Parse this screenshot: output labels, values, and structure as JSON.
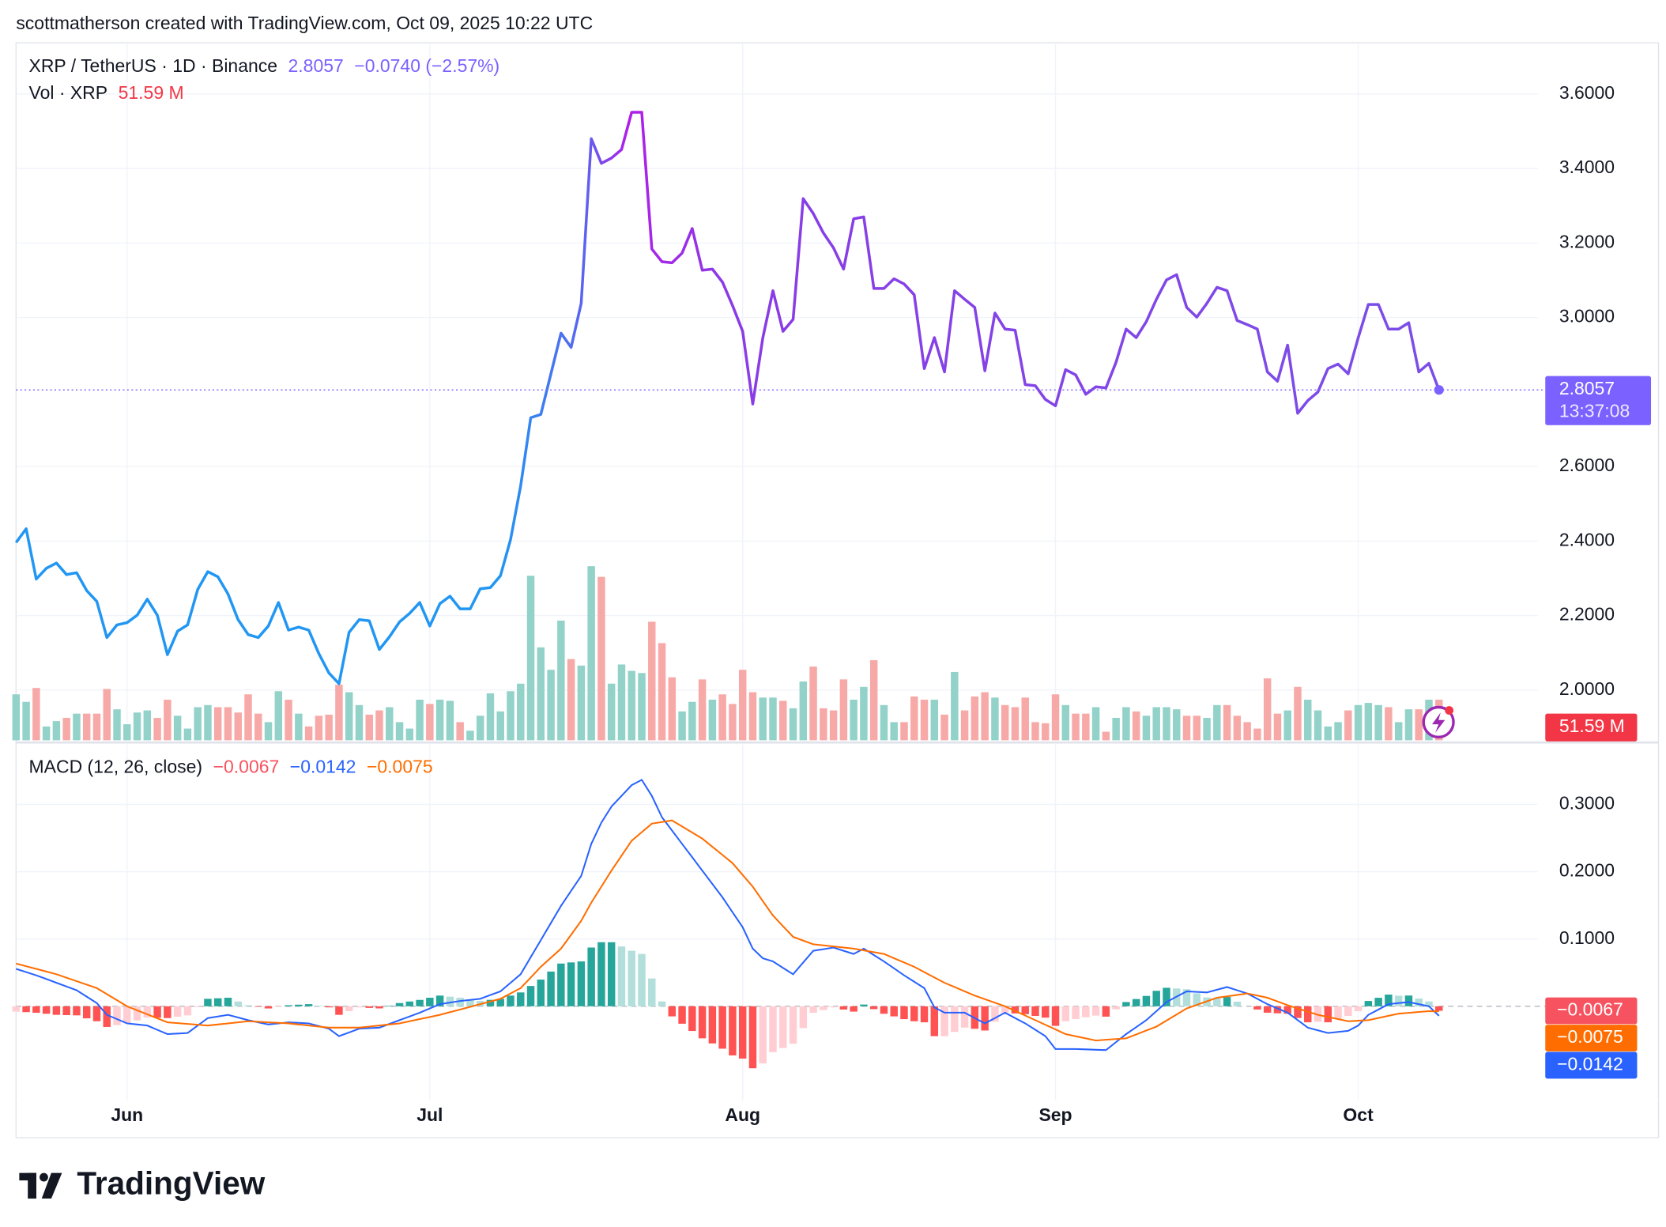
{
  "header": {
    "credit": "scottmatherson created with TradingView.com, Oct 09, 2025 10:22 UTC"
  },
  "footer": {
    "logo": "TradingView"
  },
  "chart_data": [
    {
      "type": "line",
      "categories": [
        null,
        null,
        null,
        null,
        null,
        null,
        null,
        null,
        null,
        null,
        null,
        "Jun",
        null,
        null,
        null,
        null,
        null,
        null,
        null,
        null,
        null,
        null,
        null,
        null,
        null,
        null,
        null,
        null,
        null,
        null,
        null,
        null,
        null,
        null,
        null,
        null,
        null,
        null,
        null,
        null,
        null,
        "Jul",
        null,
        null,
        null,
        null,
        null,
        null,
        null,
        null,
        null,
        null,
        null,
        null,
        null,
        null,
        null,
        null,
        null,
        null,
        null,
        null,
        null,
        null,
        null,
        null,
        null,
        null,
        null,
        null,
        null,
        null,
        "Aug",
        null,
        null,
        null,
        null,
        null,
        null,
        null,
        null,
        null,
        null,
        null,
        null,
        null,
        null,
        null,
        null,
        null,
        null,
        null,
        null,
        null,
        null,
        null,
        null,
        null,
        null,
        null,
        null,
        null,
        null,
        "Sep",
        null,
        null,
        null,
        null,
        null,
        null,
        null,
        null,
        null,
        null,
        null,
        null,
        null,
        null,
        null,
        null,
        null,
        null,
        null,
        null,
        null,
        null,
        null,
        null,
        null,
        null,
        null,
        null,
        null,
        "Oct",
        null,
        null,
        null,
        null,
        null,
        null,
        null,
        null
      ],
      "ylim": [
        1.8652,
        3.7376
      ],
      "yticks": [
        {
          "value": 2.0,
          "label": "2.0000"
        },
        {
          "value": 2.2,
          "label": "2.2000"
        },
        {
          "value": 2.4,
          "label": "2.4000"
        },
        {
          "value": 2.6,
          "label": "2.6000"
        },
        {
          "value": 3.0,
          "label": "3.0000"
        },
        {
          "value": 3.2,
          "label": "3.2000"
        },
        {
          "value": 3.4,
          "label": "3.4000"
        },
        {
          "value": 3.6,
          "label": "3.6000"
        }
      ],
      "grid": true,
      "series": [
        {
          "name": "XRP / TetherUS · 1D · Binance",
          "color": "#7b61ff",
          "change_label": "−0.0740 (−2.57%)",
          "countdown": "13:37:08",
          "values": [
            2.396,
            2.433,
            2.298,
            2.327,
            2.341,
            2.31,
            2.315,
            2.267,
            2.238,
            2.141,
            2.175,
            2.181,
            2.201,
            2.244,
            2.201,
            2.095,
            2.158,
            2.175,
            2.27,
            2.318,
            2.304,
            2.258,
            2.189,
            2.149,
            2.141,
            2.172,
            2.235,
            2.161,
            2.169,
            2.161,
            2.098,
            2.046,
            2.017,
            2.155,
            2.189,
            2.186,
            2.109,
            2.143,
            2.183,
            2.206,
            2.235,
            2.172,
            2.232,
            2.252,
            2.218,
            2.218,
            2.272,
            2.275,
            2.307,
            2.404,
            2.548,
            2.731,
            2.74,
            2.849,
            2.958,
            2.92,
            3.038,
            3.48,
            3.414,
            3.428,
            3.451,
            3.551,
            3.551,
            3.184,
            3.15,
            3.147,
            3.173,
            3.239,
            3.127,
            3.13,
            3.095,
            3.032,
            2.963,
            2.768,
            2.946,
            3.072,
            2.963,
            2.995,
            3.319,
            3.279,
            3.227,
            3.187,
            3.13,
            3.265,
            3.27,
            3.078,
            3.078,
            3.104,
            3.09,
            3.061,
            2.863,
            2.946,
            2.854,
            3.072,
            3.049,
            3.027,
            2.857,
            3.012,
            2.969,
            2.966,
            2.82,
            2.817,
            2.78,
            2.763,
            2.86,
            2.846,
            2.794,
            2.814,
            2.811,
            2.88,
            2.969,
            2.946,
            2.989,
            3.049,
            3.101,
            3.115,
            3.027,
            3.001,
            3.038,
            3.081,
            3.072,
            2.992,
            2.981,
            2.969,
            2.854,
            2.829,
            2.926,
            2.743,
            2.777,
            2.8,
            2.863,
            2.875,
            2.849,
            2.946,
            3.035,
            3.035,
            2.969,
            2.969,
            2.986,
            2.854,
            2.877,
            2.8057
          ]
        },
        {
          "name": "Vol · XRP",
          "type": "bar",
          "up_color": "#92d2c9",
          "down_color": "#f7a9a7",
          "label_color": "#f23645",
          "last_label": "51.59 M",
          "values": [
            58.4,
            48.9,
            66.5,
            17.6,
            24.4,
            28.5,
            33.9,
            33.9,
            33.9,
            65.2,
            39.4,
            20.4,
            35.3,
            38.0,
            28.5,
            51.6,
            31.2,
            14.9,
            42.1,
            44.8,
            42.1,
            42.1,
            35.3,
            58.4,
            33.9,
            23.1,
            62.4,
            51.6,
            33.9,
            17.6,
            31.2,
            32.6,
            70.6,
            61.1,
            44.8,
            32.6,
            38.0,
            42.1,
            23.1,
            14.9,
            51.6,
            46.2,
            51.6,
            50.2,
            23.1,
            12.2,
            31.2,
            59.7,
            36.7,
            62.4,
            72.0,
            209.1,
            118.1,
            89.6,
            152.1,
            103.2,
            95.0,
            221.3,
            207.7,
            72.0,
            96.4,
            88.2,
            85.5,
            150.7,
            123.5,
            80.1,
            36.7,
            48.9,
            77.4,
            51.6,
            58.4,
            46.2,
            89.6,
            61.1,
            54.3,
            54.3,
            50.2,
            40.7,
            74.7,
            93.7,
            40.7,
            38.0,
            77.4,
            51.6,
            67.9,
            101.8,
            44.8,
            23.1,
            23.1,
            55.7,
            51.6,
            51.6,
            32.6,
            86.9,
            38.0,
            55.7,
            61.1,
            54.3,
            44.8,
            42.1,
            54.3,
            23.1,
            21.7,
            58.4,
            44.8,
            33.9,
            33.9,
            42.1,
            10.9,
            28.5,
            42.1,
            36.7,
            31.2,
            42.1,
            42.1,
            39.4,
            31.2,
            31.2,
            28.5,
            44.8,
            44.8,
            31.2,
            23.1,
            14.9,
            78.7,
            33.9,
            38.0,
            67.9,
            51.6,
            38.0,
            17.6,
            23.1,
            38.0,
            44.8,
            47.5,
            44.8,
            42.1,
            23.1,
            39.4,
            39.4,
            51.6,
            51.59
          ]
        }
      ]
    },
    {
      "type": "macd",
      "title": "MACD (12, 26, close)",
      "ylim": [
        -0.1397,
        0.3889
      ],
      "yticks": [
        {
          "value": 0.1,
          "label": "0.1000"
        },
        {
          "value": 0.2,
          "label": "0.2000"
        },
        {
          "value": 0.3,
          "label": "0.3000"
        }
      ],
      "series": [
        {
          "type": "histogram",
          "color": "#f7525f",
          "up_rising": "#26a69a",
          "up_falling": "#b2dfdb",
          "down_falling": "#ff5252",
          "down_rising": "#ffcdd2",
          "last_label": "−0.0067",
          "values": [
            -0.0079,
            -0.0087,
            -0.0096,
            -0.0111,
            -0.0127,
            -0.0131,
            -0.0135,
            -0.0179,
            -0.0222,
            -0.0307,
            -0.028,
            -0.0254,
            -0.021,
            -0.0167,
            -0.0171,
            -0.0175,
            -0.0155,
            -0.0135,
            -0.0012,
            0.0111,
            0.0119,
            0.0127,
            0.0071,
            0.0016,
            -0.0008,
            -0.0032,
            -0.0008,
            0.0016,
            0.0024,
            0.0032,
            0.0008,
            -0.0016,
            -0.0127,
            -0.0072,
            -0.0016,
            -0.0024,
            -0.0031,
            0.0008,
            0.0048,
            0.0071,
            0.0095,
            0.0127,
            0.0159,
            0.0143,
            0.0127,
            0.0103,
            0.0079,
            0.0096,
            0.0111,
            0.0159,
            0.0206,
            0.0302,
            0.0397,
            0.0516,
            0.0635,
            0.0652,
            0.0667,
            0.0873,
            0.0952,
            0.0952,
            0.0889,
            0.0826,
            0.0778,
            0.0413,
            0.0072,
            -0.015,
            -0.0259,
            -0.0367,
            -0.0476,
            -0.0552,
            -0.063,
            -0.073,
            -0.0777,
            -0.0921,
            -0.0849,
            -0.0682,
            -0.0619,
            -0.0556,
            -0.0325,
            -0.0096,
            -0.0056,
            -0.0016,
            -0.0048,
            -0.0079,
            0.0026,
            -0.0042,
            -0.0111,
            -0.015,
            -0.0191,
            -0.0222,
            -0.0238,
            -0.0444,
            -0.0444,
            -0.0381,
            -0.0317,
            -0.0334,
            -0.036,
            -0.0228,
            -0.0095,
            -0.0106,
            -0.0117,
            -0.0143,
            -0.0169,
            -0.0291,
            -0.0222,
            -0.019,
            -0.0164,
            -0.0138,
            -0.0154,
            -0.0045,
            0.0063,
            0.0108,
            0.0154,
            0.023,
            0.0275,
            0.0265,
            0.0254,
            0.0193,
            0.0132,
            0.0119,
            0.0138,
            0.0069,
            0.0,
            -0.0048,
            -0.0095,
            -0.0104,
            -0.0111,
            -0.0174,
            -0.0238,
            -0.023,
            -0.0238,
            -0.0191,
            -0.0143,
            -0.0072,
            0.0079,
            0.0126,
            0.0174,
            0.0158,
            0.016,
            0.0116,
            0.0072,
            -0.0067
          ]
        },
        {
          "type": "line",
          "color": "#2962ff",
          "last_label": "−0.0142",
          "values": [
            0.0556,
            0.0508,
            0.046,
            0.0405,
            0.0349,
            0.0294,
            0.0238,
            0.0143,
            0.0048,
            -0.0127,
            -0.019,
            -0.0254,
            -0.027,
            -0.0286,
            -0.035,
            -0.0413,
            -0.0405,
            -0.0397,
            -0.0286,
            -0.0175,
            -0.0151,
            -0.0127,
            -0.0167,
            -0.0206,
            -0.0238,
            -0.027,
            -0.0254,
            -0.0238,
            -0.0246,
            -0.0254,
            -0.0294,
            -0.0333,
            -0.0444,
            -0.0389,
            -0.0333,
            -0.0325,
            -0.0317,
            -0.0262,
            -0.0206,
            -0.0151,
            -0.0095,
            -0.0032,
            0.0032,
            0.0056,
            0.0079,
            0.0095,
            0.0111,
            0.0167,
            0.0222,
            0.0349,
            0.0476,
            0.073,
            0.0984,
            0.1238,
            0.1492,
            0.1715,
            0.1937,
            0.2413,
            0.273,
            0.2968,
            0.3127,
            0.3286,
            0.3365,
            0.3127,
            0.281,
            0.2612,
            0.2413,
            0.2215,
            0.2016,
            0.1818,
            0.1619,
            0.1397,
            0.1175,
            0.0857,
            0.0714,
            0.0667,
            0.0571,
            0.0476,
            0.0651,
            0.0825,
            0.0849,
            0.0873,
            0.0825,
            0.0778,
            0.0857,
            0.0762,
            0.0667,
            0.0564,
            0.046,
            0.0365,
            0.027,
            -0.0016,
            -0.0095,
            -0.0095,
            -0.0095,
            -0.0175,
            -0.0254,
            -0.0175,
            -0.0095,
            -0.0175,
            -0.0254,
            -0.0349,
            -0.0444,
            -0.0635,
            -0.0635,
            -0.0635,
            -0.064,
            -0.0646,
            -0.0651,
            -0.0532,
            -0.0413,
            -0.031,
            -0.0206,
            -0.0072,
            0.0063,
            0.0143,
            0.0222,
            0.0214,
            0.0206,
            0.0246,
            0.0286,
            0.0238,
            0.019,
            0.0111,
            0.0032,
            -0.0032,
            -0.0095,
            -0.0206,
            -0.0317,
            -0.0357,
            -0.0397,
            -0.0381,
            -0.0365,
            -0.0286,
            -0.0127,
            -0.0048,
            0.0032,
            0.0048,
            0.0063,
            0.0032,
            0.0,
            -0.0142
          ]
        },
        {
          "type": "line",
          "color": "#ff6d00",
          "last_label": "−0.0075",
          "values": [
            0.0635,
            0.0595,
            0.0556,
            0.0516,
            0.0476,
            0.0425,
            0.0373,
            0.0322,
            0.027,
            0.018,
            0.009,
            0.0,
            -0.006,
            -0.0119,
            -0.0179,
            -0.0238,
            -0.025,
            -0.0262,
            -0.0274,
            -0.0286,
            -0.027,
            -0.0254,
            -0.0238,
            -0.0222,
            -0.023,
            -0.0238,
            -0.0246,
            -0.0254,
            -0.027,
            -0.0286,
            -0.0302,
            -0.0317,
            -0.0317,
            -0.0317,
            -0.0317,
            -0.0301,
            -0.0286,
            -0.027,
            -0.0254,
            -0.0222,
            -0.019,
            -0.0159,
            -0.0127,
            -0.0087,
            -0.0048,
            -0.0008,
            0.0032,
            0.0071,
            0.0111,
            0.019,
            0.027,
            0.0428,
            0.0587,
            0.0722,
            0.0857,
            0.1063,
            0.127,
            0.154,
            0.1778,
            0.2016,
            0.2238,
            0.246,
            0.2587,
            0.2714,
            0.2738,
            0.2762,
            0.2672,
            0.2582,
            0.2492,
            0.237,
            0.2249,
            0.2127,
            0.1952,
            0.1778,
            0.1563,
            0.1349,
            0.119,
            0.1032,
            0.0976,
            0.0921,
            0.0905,
            0.0889,
            0.0873,
            0.0857,
            0.0831,
            0.0804,
            0.0778,
            0.0714,
            0.0651,
            0.0587,
            0.0508,
            0.0428,
            0.0349,
            0.0286,
            0.0222,
            0.0159,
            0.0106,
            0.0053,
            0.0,
            -0.0069,
            -0.0137,
            -0.0206,
            -0.0275,
            -0.0344,
            -0.0413,
            -0.0445,
            -0.0476,
            -0.0508,
            -0.0497,
            -0.0487,
            -0.0476,
            -0.0418,
            -0.036,
            -0.0302,
            -0.0212,
            -0.0122,
            -0.0032,
            0.0021,
            0.0074,
            0.0127,
            0.0148,
            0.0169,
            0.019,
            0.0159,
            0.0127,
            0.0072,
            0.0016,
            -0.0032,
            -0.0079,
            -0.0127,
            -0.0159,
            -0.019,
            -0.0222,
            -0.0214,
            -0.0206,
            -0.0174,
            -0.0142,
            -0.011,
            -0.0097,
            -0.0084,
            -0.0072,
            -0.0075
          ]
        }
      ]
    }
  ]
}
